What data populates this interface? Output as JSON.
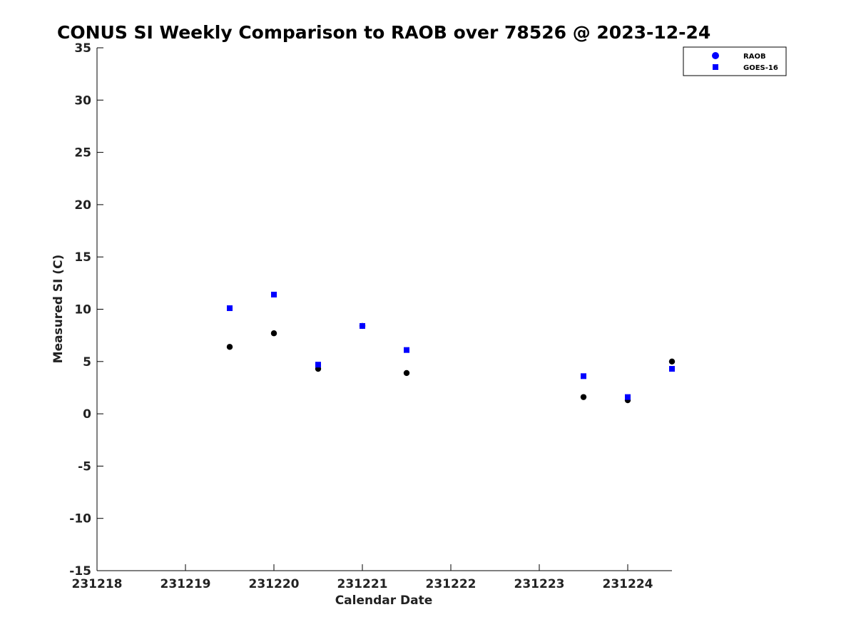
{
  "chart_data": {
    "type": "scatter",
    "title": "CONUS SI Weekly Comparison to RAOB over 78526 @ 2023-12-24",
    "xlabel": "Calendar Date",
    "ylabel": "Measured SI (C)",
    "xlim": [
      231218,
      231224.5
    ],
    "ylim": [
      -15,
      35
    ],
    "xticks": [
      231218,
      231219,
      231220,
      231221,
      231222,
      231223,
      231224
    ],
    "xtick_labels": [
      "231218",
      "231219",
      "231220",
      "231221",
      "231222",
      "231223",
      "231224"
    ],
    "yticks": [
      35,
      30,
      25,
      20,
      15,
      10,
      5,
      0,
      -5,
      -10,
      -15
    ],
    "ytick_labels": [
      "35",
      "30",
      "25",
      "20",
      "15",
      "10",
      "5",
      "0",
      "-5",
      "-10",
      "-15"
    ],
    "grid": false,
    "legend_position": "top-right",
    "series": [
      {
        "name": "RAOB",
        "marker": "circle",
        "legend_color": "#0000ff",
        "point_color": "#000000",
        "x": [
          231219.5,
          231220,
          231220.5,
          231221,
          231221.5,
          231223.5,
          231224,
          231224.5
        ],
        "y": [
          6.4,
          7.7,
          4.3,
          8.4,
          3.9,
          1.6,
          1.3,
          5.0
        ]
      },
      {
        "name": "GOES-16",
        "marker": "square",
        "legend_color": "#0000ff",
        "point_color": "#0000ff",
        "x": [
          231219.5,
          231220,
          231220.5,
          231221,
          231221.5,
          231223.5,
          231224,
          231224.5
        ],
        "y": [
          10.1,
          11.4,
          4.7,
          8.4,
          6.1,
          3.6,
          1.6,
          4.3
        ]
      }
    ]
  }
}
